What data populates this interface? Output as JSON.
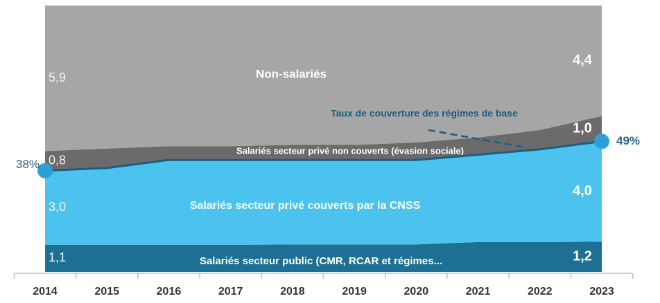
{
  "chart_data": {
    "type": "stacked_area",
    "stacking": "percent",
    "categories": [
      "2014",
      "2015",
      "2016",
      "2017",
      "2018",
      "2019",
      "2020",
      "2021",
      "2022",
      "2023"
    ],
    "series": [
      {
        "name": "Salariés secteur public (CMR, RCAR et régimes...",
        "color": "#1d6f93",
        "values": [
          1.1,
          1.1,
          1.1,
          1.1,
          1.1,
          1.1,
          1.1,
          1.2,
          1.2,
          1.2
        ],
        "value_labels": [
          "1,1",
          null,
          null,
          null,
          null,
          null,
          null,
          null,
          null,
          "1,2"
        ]
      },
      {
        "name": "Salariés secteur privé couverts par la CNSS",
        "color": "#4cc3ef",
        "values": [
          3.0,
          3.1,
          3.4,
          3.4,
          3.4,
          3.4,
          3.4,
          3.5,
          3.7,
          4.0
        ],
        "value_labels": [
          "3,0",
          null,
          null,
          null,
          null,
          null,
          null,
          null,
          null,
          "4,0"
        ]
      },
      {
        "name": "Salariés secteur privé non couverts (évasion sociale)",
        "color": "#6b6b6b",
        "values": [
          0.8,
          0.8,
          0.6,
          0.6,
          0.6,
          0.6,
          0.7,
          0.7,
          0.8,
          1.0
        ],
        "value_labels": [
          "0,8",
          null,
          null,
          null,
          null,
          null,
          null,
          null,
          null,
          "1,0"
        ]
      },
      {
        "name": "Non-salariés",
        "color": "#a6a6a6",
        "values": [
          5.9,
          5.8,
          5.7,
          5.7,
          5.6,
          5.6,
          5.5,
          5.3,
          5.0,
          4.4
        ],
        "value_labels": [
          "5,9",
          null,
          null,
          null,
          null,
          null,
          null,
          null,
          null,
          "4,4"
        ]
      }
    ],
    "coverage_rate": {
      "name": "Taux de couverture des régimes de base",
      "color": "#1b5e80",
      "marker_color": "#2a9fd8",
      "values": [
        38,
        39,
        42,
        42,
        42,
        42,
        42,
        44,
        46,
        49
      ],
      "value_labels": [
        "38%",
        null,
        null,
        null,
        null,
        null,
        null,
        null,
        null,
        "49%"
      ]
    }
  }
}
